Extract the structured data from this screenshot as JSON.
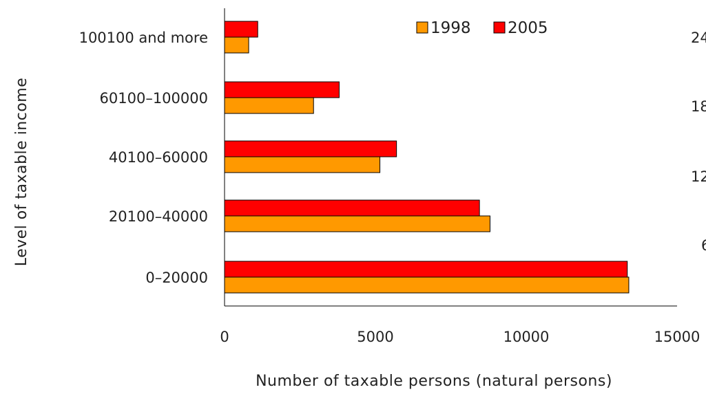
{
  "chart_data": {
    "type": "bar",
    "orientation": "horizontal",
    "title": "",
    "xlabel": "Number of taxable persons (natural persons)",
    "ylabel": "Level of taxable income",
    "xlim": [
      0,
      15000
    ],
    "x_ticks": [
      "0",
      "5000",
      "10000",
      "15000"
    ],
    "categories": [
      "0–20000",
      "20100–40000",
      "40100–60000",
      "60100–100000",
      "100100 and more"
    ],
    "series": [
      {
        "name": "1998",
        "color": "#ff9900",
        "values": [
          13400,
          8800,
          5150,
          2950,
          800
        ]
      },
      {
        "name": "2005",
        "color": "#ff0000",
        "values": [
          13350,
          8450,
          5700,
          3800,
          1100
        ]
      }
    ],
    "legend_position": "top",
    "grid": false,
    "right_axis_fragments": [
      "24",
      "18",
      "12",
      "6"
    ]
  }
}
